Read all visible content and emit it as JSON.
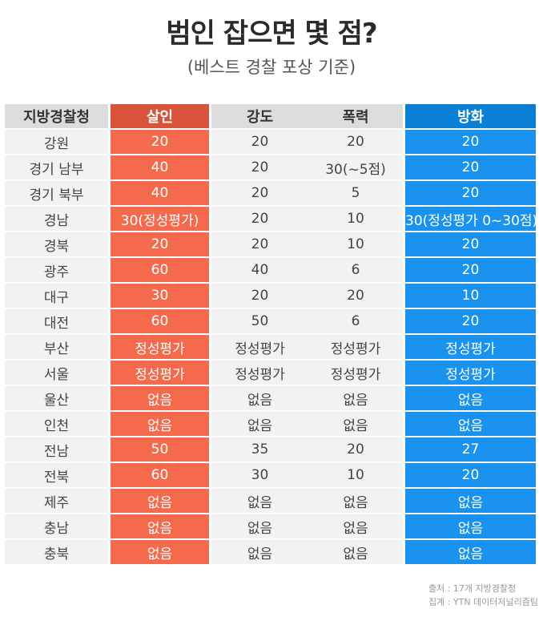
{
  "title": "범인 잡으면 몇 점?",
  "subtitle": "(베스트 경찰 포상 기준)",
  "table": {
    "headers": [
      "지방경찰청",
      "살인",
      "강도",
      "폭력",
      "방화"
    ],
    "rows": [
      [
        "강원",
        "20",
        "20",
        "20",
        "20"
      ],
      [
        "경기 남부",
        "40",
        "20",
        "30(~5점)",
        "20"
      ],
      [
        "경기 북부",
        "40",
        "20",
        "5",
        "20"
      ],
      [
        "경남",
        "30(정성평가)",
        "20",
        "10",
        "30(정성평가 0~30점)"
      ],
      [
        "경북",
        "20",
        "20",
        "10",
        "20"
      ],
      [
        "광주",
        "60",
        "40",
        "6",
        "20"
      ],
      [
        "대구",
        "30",
        "20",
        "20",
        "10"
      ],
      [
        "대전",
        "60",
        "50",
        "6",
        "20"
      ],
      [
        "부산",
        "정성평가",
        "정성평가",
        "정성평가",
        "정성평가"
      ],
      [
        "서울",
        "정성평가",
        "정성평가",
        "정성평가",
        "정성평가"
      ],
      [
        "울산",
        "없음",
        "없음",
        "없음",
        "없음"
      ],
      [
        "인천",
        "없음",
        "없음",
        "없음",
        "없음"
      ],
      [
        "전남",
        "50",
        "35",
        "20",
        "27"
      ],
      [
        "전북",
        "60",
        "30",
        "10",
        "20"
      ],
      [
        "제주",
        "없음",
        "없음",
        "없음",
        "없음"
      ],
      [
        "충남",
        "없음",
        "없음",
        "없음",
        "없음"
      ],
      [
        "충북",
        "없음",
        "없음",
        "없음",
        "없음"
      ]
    ]
  },
  "source": {
    "line1": "출처 : 17개 지방경찰청",
    "line2": "집계 : YTN 데이터저널리즘팀"
  },
  "colors": {
    "murder_header": "#d9523a",
    "murder_cell": "#f56a4d",
    "arson_header": "#0a7fd6",
    "arson_cell": "#1a93f0",
    "neutral_header": "#dcdcdc",
    "neutral_cell": "#f2f2f2"
  }
}
